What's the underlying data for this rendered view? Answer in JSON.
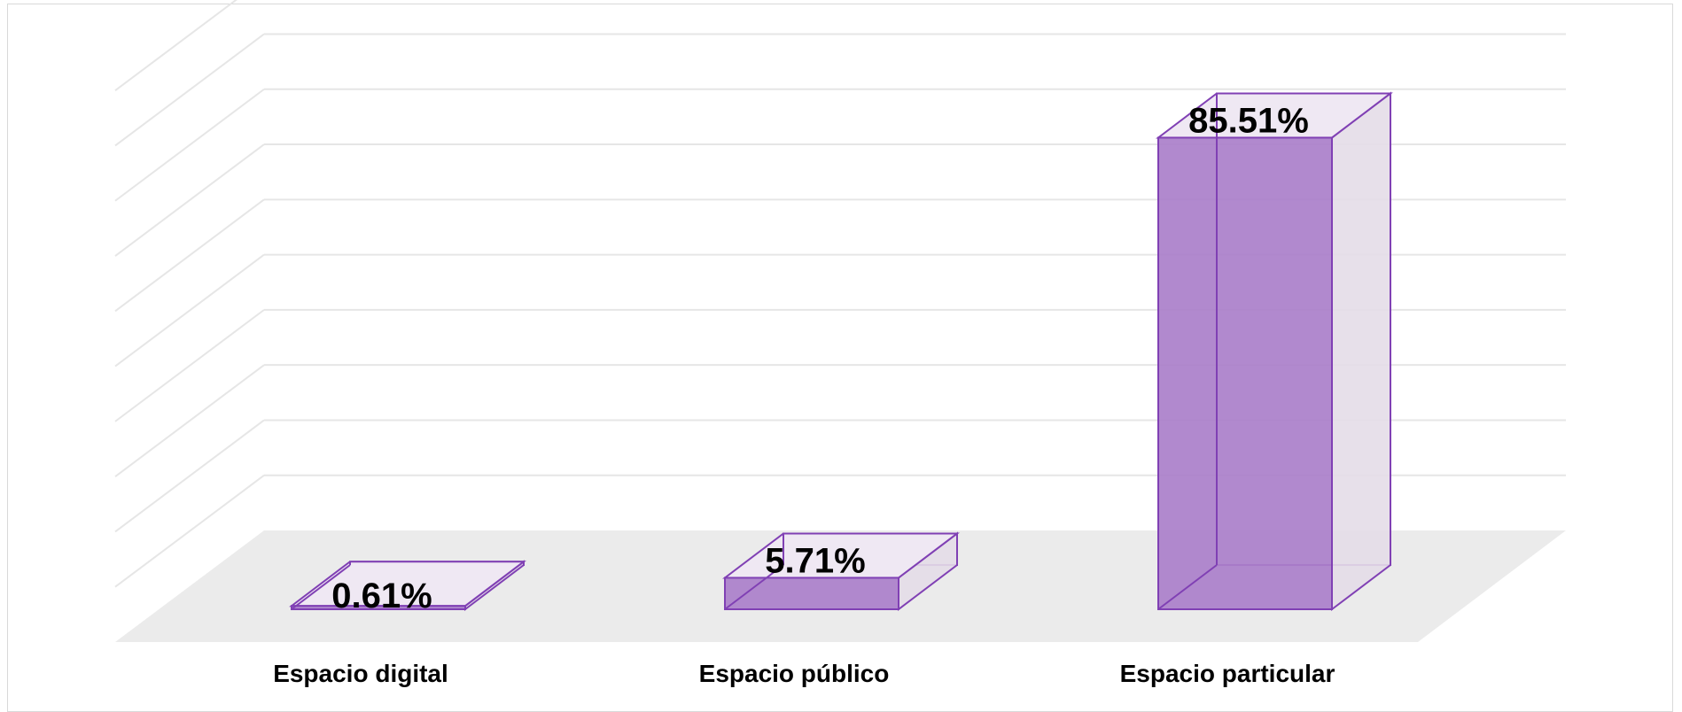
{
  "chart_data": {
    "type": "bar",
    "title": "",
    "xlabel": "",
    "ylabel": "",
    "categories": [
      "Espacio digital",
      "Espacio público",
      "Espacio particular"
    ],
    "values": [
      0.61,
      5.71,
      85.51
    ],
    "data_labels": [
      "0.61%",
      "5.71%",
      "85.51%"
    ],
    "ylim": [
      0,
      100
    ],
    "grid": true,
    "legend": "none",
    "style": "3d-column",
    "colors": {
      "bar_front": "#aa7fca",
      "bar_edge": "#8040b4",
      "bar_top": "#efe8f3",
      "bar_side": "#e4dde8",
      "floor": "#ebebeb",
      "gridline": "#e6e6e6"
    }
  }
}
